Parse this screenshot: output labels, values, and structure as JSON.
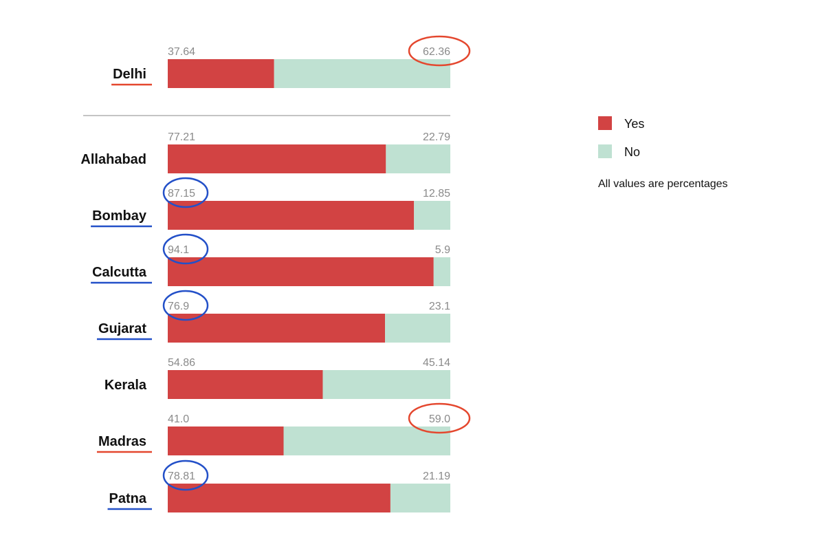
{
  "chart_data": {
    "type": "bar",
    "stacked": true,
    "orientation": "horizontal",
    "categories": [
      "Delhi",
      "Allahabad",
      "Bombay",
      "Calcutta",
      "Gujarat",
      "Kerala",
      "Madras",
      "Patna"
    ],
    "series": [
      {
        "name": "Yes",
        "color": "#d24343",
        "values": [
          37.64,
          77.21,
          87.15,
          94.1,
          76.9,
          54.86,
          41.0,
          78.81
        ],
        "labels": [
          "37.64",
          "77.21",
          "87.15",
          "94.1",
          "76.9",
          "54.86",
          "41.0",
          "78.81"
        ]
      },
      {
        "name": "No",
        "color": "#bfe1d2",
        "values": [
          62.36,
          22.79,
          12.85,
          5.9,
          23.1,
          45.14,
          59.0,
          21.19
        ],
        "labels": [
          "62.36",
          "22.79",
          "12.85",
          "5.9",
          "23.1",
          "45.14",
          "59.0",
          "21.19"
        ]
      }
    ],
    "xlim": [
      0,
      100
    ],
    "note": "All values are percentages",
    "legend_position": "right",
    "separator_after": "Delhi",
    "underlines": {
      "Delhi": "#e4472e",
      "Bombay": "#2350c8",
      "Calcutta": "#2350c8",
      "Gujarat": "#2350c8",
      "Madras": "#e4472e",
      "Patna": "#2350c8"
    },
    "circled_values": [
      {
        "category": "Delhi",
        "series": "No",
        "color": "#e4472e"
      },
      {
        "category": "Bombay",
        "series": "Yes",
        "color": "#2350c8"
      },
      {
        "category": "Calcutta",
        "series": "Yes",
        "color": "#2350c8"
      },
      {
        "category": "Gujarat",
        "series": "Yes",
        "color": "#2350c8"
      },
      {
        "category": "Madras",
        "series": "No",
        "color": "#e4472e"
      },
      {
        "category": "Patna",
        "series": "Yes",
        "color": "#2350c8"
      }
    ]
  }
}
